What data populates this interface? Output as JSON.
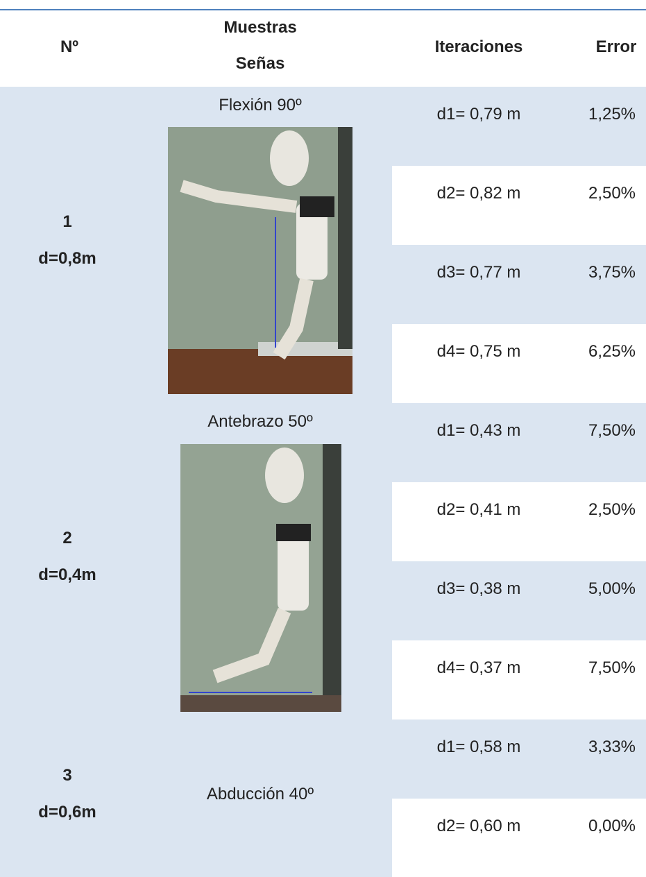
{
  "header": {
    "number": "Nº",
    "samples": [
      "Muestras",
      "Señas"
    ],
    "iterations": "Iteraciones",
    "error": "Error"
  },
  "groups": [
    {
      "number": "1",
      "distance": "d=0,8m",
      "sample": "Flexión 90º",
      "rows": [
        {
          "iteration": "d1= 0,79 m",
          "error": "1,25%"
        },
        {
          "iteration": "d2= 0,82 m",
          "error": "2,50%"
        },
        {
          "iteration": "d3= 0,77 m",
          "error": "3,75%"
        },
        {
          "iteration": "d4= 0,75 m",
          "error": "6,25%"
        }
      ]
    },
    {
      "number": "2",
      "distance": "d=0,4m",
      "sample": "Antebrazo 50º",
      "rows": [
        {
          "iteration": "d1= 0,43 m",
          "error": "7,50%"
        },
        {
          "iteration": "d2= 0,41 m",
          "error": "2,50%"
        },
        {
          "iteration": "d3= 0,38 m",
          "error": "5,00%"
        },
        {
          "iteration": "d4= 0,37 m",
          "error": "7,50%"
        }
      ]
    },
    {
      "number": "3",
      "distance": "d=0,6m",
      "sample": "Abducción 40º",
      "rows": [
        {
          "iteration": "d1= 0,58 m",
          "error": "3,33%"
        },
        {
          "iteration": "d2= 0,60 m",
          "error": "0,00%"
        }
      ]
    }
  ]
}
